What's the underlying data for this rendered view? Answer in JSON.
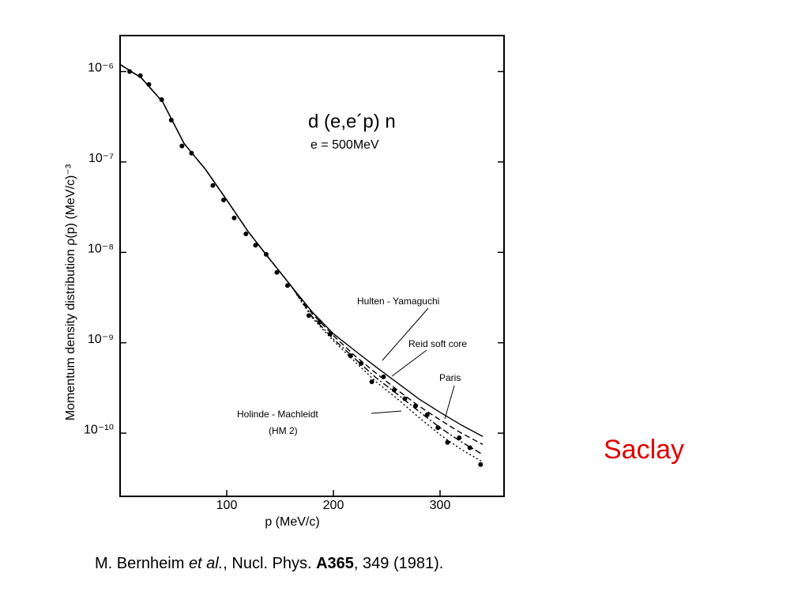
{
  "chart_data": {
    "type": "line",
    "title": "d (e,e´p) n",
    "subtitle": "e = 500MeV",
    "x_label": "p (MeV/c)",
    "y_label": "Momentum density distribution ρ(p) (MeV/c)⁻³",
    "xlim": [
      0,
      360
    ],
    "xticks": [
      100,
      200,
      300
    ],
    "ylim": [
      2e-11,
      2.5e-06
    ],
    "log_y": true,
    "yticks": [
      {
        "value": 1e-06,
        "label": "10⁻⁶"
      },
      {
        "value": 1e-07,
        "label": "10⁻⁷"
      },
      {
        "value": 1e-08,
        "label": "10⁻⁸"
      },
      {
        "value": 1e-09,
        "label": "10⁻⁹"
      },
      {
        "value": 1e-10,
        "label": "10⁻¹⁰"
      }
    ],
    "series": [
      {
        "name": "Hulten - Yamaguchi",
        "color": "#000000",
        "dash": "solid",
        "x": [
          0,
          20,
          40,
          60,
          80,
          100,
          120,
          140,
          160,
          180,
          200,
          220,
          240,
          260,
          280,
          300,
          320,
          340
        ],
        "values": [
          1.2e-06,
          8.5e-07,
          4.6e-07,
          1.6e-07,
          8.3e-08,
          3.8e-08,
          1.7e-08,
          8.5e-09,
          4.3e-09,
          2.2e-09,
          1.26e-09,
          8.2e-10,
          5.4e-10,
          3.6e-10,
          2.4e-10,
          1.7e-10,
          1.23e-10,
          9.2e-11
        ]
      },
      {
        "name": "Reid soft core",
        "color": "#000000",
        "dash": "dashed",
        "x": [
          0,
          20,
          40,
          60,
          80,
          100,
          120,
          140,
          160,
          180,
          200,
          220,
          240,
          260,
          280,
          300,
          320,
          340
        ],
        "values": [
          1.2e-06,
          8.5e-07,
          4.6e-07,
          1.6e-07,
          8.3e-08,
          3.8e-08,
          1.7e-08,
          8.5e-09,
          4.3e-09,
          2.1e-09,
          1.2e-09,
          7.2e-10,
          4.6e-10,
          3e-10,
          2e-10,
          1.4e-10,
          1e-10,
          7.5e-11
        ]
      },
      {
        "name": "Paris",
        "color": "#000000",
        "dash": "dash-dot",
        "x": [
          0,
          20,
          40,
          60,
          80,
          100,
          120,
          140,
          160,
          180,
          200,
          220,
          240,
          260,
          280,
          300,
          320,
          340
        ],
        "values": [
          1.2e-06,
          8.5e-07,
          4.6e-07,
          1.6e-07,
          8.3e-08,
          3.8e-08,
          1.7e-08,
          8.5e-09,
          4.3e-09,
          1.95e-09,
          1.1e-09,
          6.7e-10,
          4.1e-10,
          2.7e-10,
          1.75e-10,
          1.15e-10,
          8e-11,
          5.8e-11
        ]
      },
      {
        "name": "Holinde - Machleidt",
        "sublabel": "(HM 2)",
        "color": "#000000",
        "dash": "dotted",
        "x": [
          0,
          20,
          40,
          60,
          80,
          100,
          120,
          140,
          160,
          180,
          200,
          220,
          240,
          260,
          280,
          300,
          320,
          340
        ],
        "values": [
          1.2e-06,
          8.5e-07,
          4.6e-07,
          1.6e-07,
          8.3e-08,
          3.8e-08,
          1.7e-08,
          8.5e-09,
          4.3e-09,
          1.9e-09,
          1.05e-09,
          6.2e-10,
          3.7e-10,
          2.4e-10,
          1.5e-10,
          9.6e-11,
          6.6e-11,
          4.8e-11
        ]
      },
      {
        "color": "#000000",
        "marker": "dot",
        "x": [
          9,
          19,
          27,
          39,
          48,
          58,
          67,
          87,
          97,
          107,
          118,
          127,
          137,
          147,
          157,
          177,
          187,
          197,
          216,
          226,
          236,
          247,
          257,
          267,
          277,
          288,
          298,
          307,
          318,
          328,
          338
        ],
        "values": [
          1e-06,
          9e-07,
          7.2e-07,
          4.9e-07,
          2.9e-07,
          1.5e-07,
          1.25e-07,
          5.5e-08,
          3.8e-08,
          2.4e-08,
          1.6e-08,
          1.2e-08,
          9.5e-09,
          6e-09,
          4.3e-09,
          2e-09,
          1.7e-09,
          1.25e-09,
          7.2e-10,
          5.9e-10,
          3.7e-10,
          4.2e-10,
          3e-10,
          2.4e-10,
          2e-10,
          1.6e-10,
          1.15e-10,
          7.9e-11,
          8.9e-11,
          6.9e-11,
          4.5e-11
        ]
      }
    ]
  },
  "slide": {
    "label": "Saclay",
    "citation": [
      "M. Bernheim ",
      "et al.",
      ", Nucl. Phys. ",
      "A365",
      ", 349 (1981)."
    ]
  }
}
